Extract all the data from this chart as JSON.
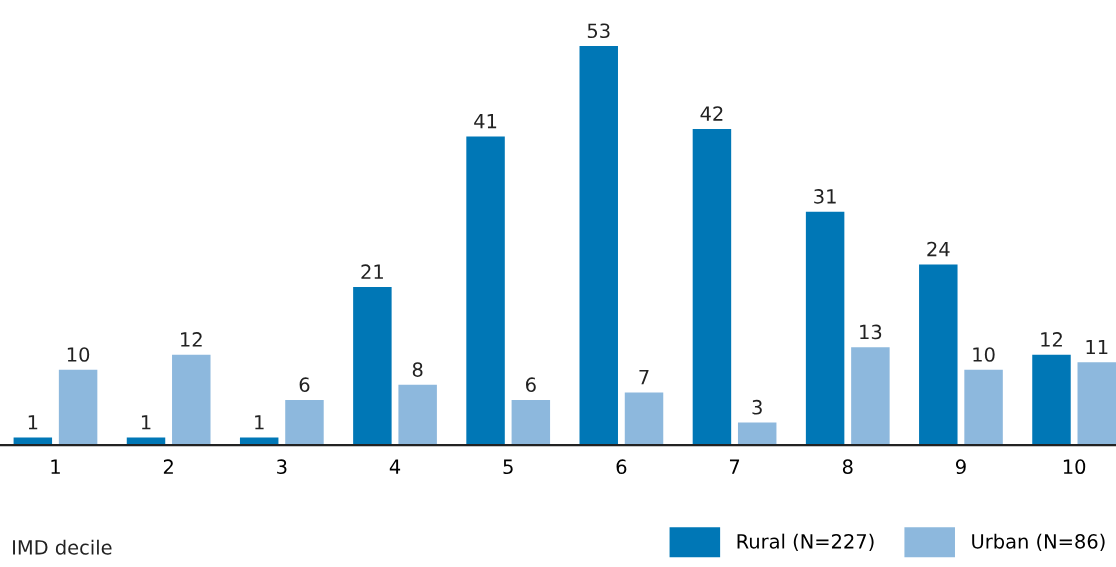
{
  "chart_data": {
    "type": "bar",
    "xlabel": "IMD decile",
    "categories": [
      "1",
      "2",
      "3",
      "4",
      "5",
      "6",
      "7",
      "8",
      "9",
      "10"
    ],
    "series": [
      {
        "name": "Rural (N=227)",
        "color": "#0077b6",
        "values": [
          1,
          1,
          1,
          21,
          41,
          53,
          42,
          31,
          24,
          12
        ]
      },
      {
        "name": "Urban (N=86)",
        "color": "#8db8dd",
        "values": [
          10,
          12,
          6,
          8,
          6,
          7,
          3,
          13,
          10,
          11
        ]
      }
    ],
    "data_labels": true,
    "legend": "bottom right"
  }
}
